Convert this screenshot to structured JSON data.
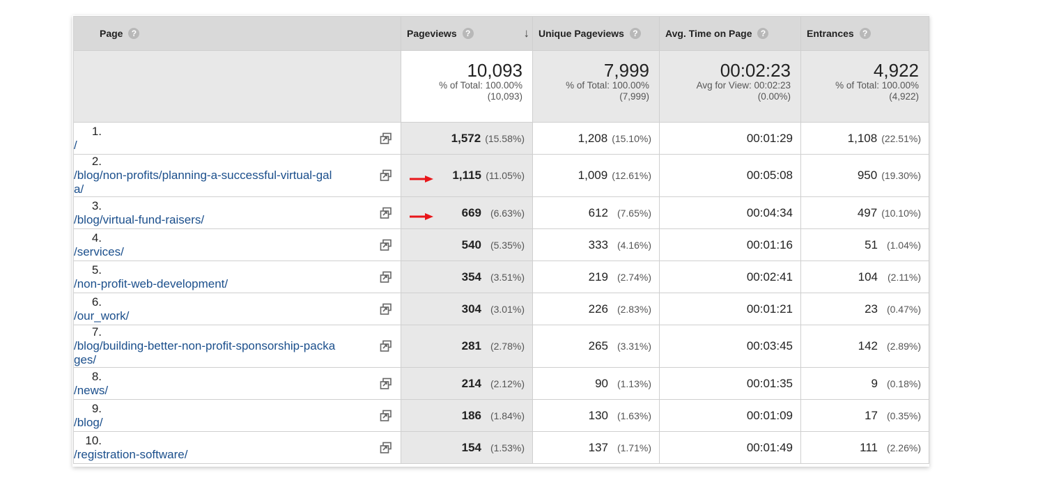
{
  "table": {
    "headers": {
      "page": "Page",
      "pageviews": "Pageviews",
      "unique_pageviews": "Unique Pageviews",
      "avg_time": "Avg. Time on Page",
      "entrances": "Entrances"
    },
    "totals": {
      "pageviews": {
        "value": "10,093",
        "line1": "% of Total: 100.00%",
        "line2": "(10,093)"
      },
      "unique_pageviews": {
        "value": "7,999",
        "line1": "% of Total: 100.00%",
        "line2": "(7,999)"
      },
      "avg_time": {
        "value": "00:02:23",
        "line1": "Avg for View: 00:02:23",
        "line2": "(0.00%)"
      },
      "entrances": {
        "value": "4,922",
        "line1": "% of Total: 100.00%",
        "line2": "(4,922)"
      }
    },
    "rows": [
      {
        "idx": "1.",
        "page": "/",
        "pv": "1,572",
        "pv_pct": "(15.58%)",
        "upv": "1,208",
        "upv_pct": "(15.10%)",
        "time": "00:01:29",
        "ent": "1,108",
        "ent_pct": "(22.51%)"
      },
      {
        "idx": "2.",
        "page": "/blog/non-profits/planning-a-successful-virtual-gala/",
        "pv": "1,115",
        "pv_pct": "(11.05%)",
        "upv": "1,009",
        "upv_pct": "(12.61%)",
        "time": "00:05:08",
        "ent": "950",
        "ent_pct": "(19.30%)"
      },
      {
        "idx": "3.",
        "page": "/blog/virtual-fund-raisers/",
        "pv": "669",
        "pv_pct": "(6.63%)",
        "upv": "612",
        "upv_pct": "(7.65%)",
        "time": "00:04:34",
        "ent": "497",
        "ent_pct": "(10.10%)"
      },
      {
        "idx": "4.",
        "page": "/services/",
        "pv": "540",
        "pv_pct": "(5.35%)",
        "upv": "333",
        "upv_pct": "(4.16%)",
        "time": "00:01:16",
        "ent": "51",
        "ent_pct": "(1.04%)"
      },
      {
        "idx": "5.",
        "page": "/non-profit-web-development/",
        "pv": "354",
        "pv_pct": "(3.51%)",
        "upv": "219",
        "upv_pct": "(2.74%)",
        "time": "00:02:41",
        "ent": "104",
        "ent_pct": "(2.11%)"
      },
      {
        "idx": "6.",
        "page": "/our_work/",
        "pv": "304",
        "pv_pct": "(3.01%)",
        "upv": "226",
        "upv_pct": "(2.83%)",
        "time": "00:01:21",
        "ent": "23",
        "ent_pct": "(0.47%)"
      },
      {
        "idx": "7.",
        "page": "/blog/building-better-non-profit-sponsorship-packages/",
        "pv": "281",
        "pv_pct": "(2.78%)",
        "upv": "265",
        "upv_pct": "(3.31%)",
        "time": "00:03:45",
        "ent": "142",
        "ent_pct": "(2.89%)"
      },
      {
        "idx": "8.",
        "page": "/news/",
        "pv": "214",
        "pv_pct": "(2.12%)",
        "upv": "90",
        "upv_pct": "(1.13%)",
        "time": "00:01:35",
        "ent": "9",
        "ent_pct": "(0.18%)"
      },
      {
        "idx": "9.",
        "page": "/blog/",
        "pv": "186",
        "pv_pct": "(1.84%)",
        "upv": "130",
        "upv_pct": "(1.63%)",
        "time": "00:01:09",
        "ent": "17",
        "ent_pct": "(0.35%)"
      },
      {
        "idx": "10.",
        "page": "/registration-software/",
        "pv": "154",
        "pv_pct": "(1.53%)",
        "upv": "137",
        "upv_pct": "(1.71%)",
        "time": "00:01:49",
        "ent": "111",
        "ent_pct": "(2.26%)"
      }
    ]
  },
  "icons": {
    "help": "question-mark-icon",
    "sort": "sort-descending-arrow-icon",
    "external": "open-in-new-window-icon",
    "annotation": "red-arrow-icon"
  },
  "colors": {
    "link": "#1b4f8c",
    "header_bg": "#d9d9d9",
    "shaded_bg": "#e8e8e8",
    "arrow": "#e8161a"
  }
}
